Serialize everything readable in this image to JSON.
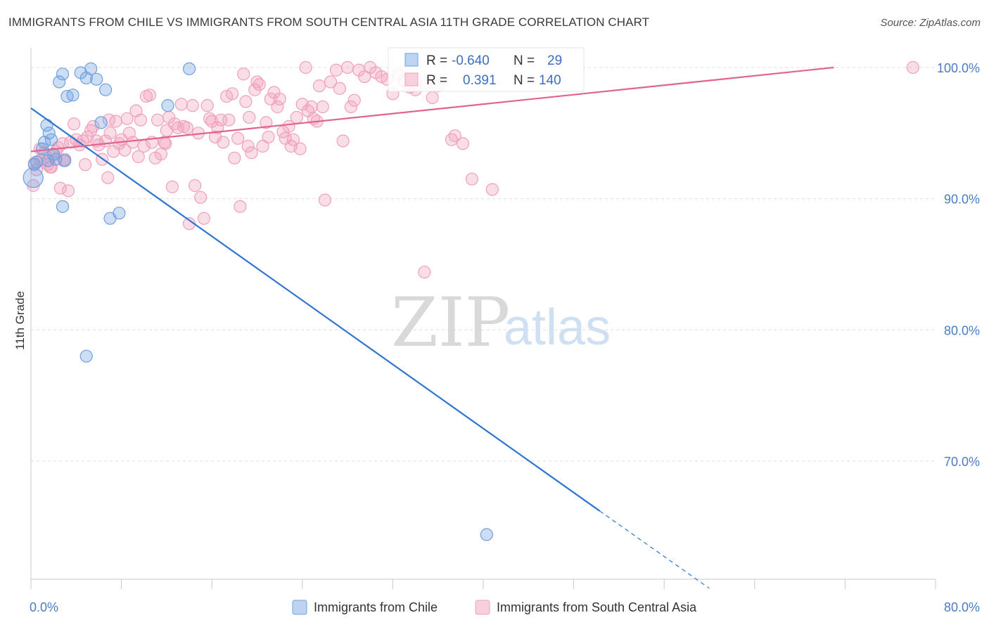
{
  "title": "IMMIGRANTS FROM CHILE VS IMMIGRANTS FROM SOUTH CENTRAL ASIA 11TH GRADE CORRELATION CHART",
  "source": "Source: ZipAtlas.com",
  "watermark": {
    "zip": "ZIP",
    "atlas": "atlas"
  },
  "colors": {
    "chile": "#6fa0e0",
    "chile_line": "#2e74d1",
    "asia": "#f0a0bb",
    "asia_line": "#e0648e",
    "grid": "#dddddd",
    "tick_label": "#4a7cc7"
  },
  "legend": {
    "rows": [
      {
        "r_label": "R =",
        "r_value": "-0.640",
        "n_label": "N =",
        "n_value": "29"
      },
      {
        "r_label": "R =",
        "r_value": "0.391",
        "n_label": "N =",
        "n_value": "140"
      }
    ]
  },
  "chart_data": {
    "type": "scatter",
    "title": "IMMIGRANTS FROM CHILE VS IMMIGRANTS FROM SOUTH CENTRAL ASIA 11TH GRADE CORRELATION CHART",
    "xlabel": "",
    "ylabel": "11th Grade",
    "xlim": [
      0,
      80
    ],
    "ylim": [
      61,
      101.5
    ],
    "x_tick_labels": [
      "0.0%",
      "80.0%"
    ],
    "y_ticks": [
      70,
      80,
      90,
      100
    ],
    "y_tick_labels": [
      "70.0%",
      "80.0%",
      "90.0%",
      "100.0%"
    ],
    "grid": true,
    "legend_position": "top-center",
    "series": [
      {
        "name": "Immigrants from Chile",
        "r": -0.64,
        "n": 29,
        "points": [
          [
            0.2,
            91.6
          ],
          [
            0.3,
            92.6
          ],
          [
            0.5,
            92.8
          ],
          [
            1.0,
            93.8
          ],
          [
            1.2,
            94.3
          ],
          [
            1.4,
            95.6
          ],
          [
            1.6,
            95.0
          ],
          [
            1.8,
            94.5
          ],
          [
            2.0,
            93.4
          ],
          [
            2.2,
            93.0
          ],
          [
            2.5,
            98.9
          ],
          [
            2.8,
            89.4
          ],
          [
            2.8,
            99.5
          ],
          [
            3.0,
            92.9
          ],
          [
            3.2,
            97.8
          ],
          [
            3.7,
            97.9
          ],
          [
            4.4,
            99.6
          ],
          [
            4.9,
            99.2
          ],
          [
            5.3,
            99.9
          ],
          [
            5.8,
            99.1
          ],
          [
            6.2,
            95.8
          ],
          [
            6.6,
            98.3
          ],
          [
            7.0,
            88.5
          ],
          [
            7.8,
            88.9
          ],
          [
            4.9,
            78.0
          ],
          [
            12.1,
            97.1
          ],
          [
            14.0,
            99.9
          ],
          [
            40.3,
            64.4
          ],
          [
            1.5,
            92.9
          ]
        ],
        "trend": {
          "x0": 0,
          "y0": 96.9,
          "x1": 50.3,
          "y1": 66.2,
          "dash_to_x": 60,
          "dash_to_y": 60.3
        }
      },
      {
        "name": "Immigrants from South Central Asia",
        "r": 0.391,
        "n": 140,
        "points": [
          [
            0.2,
            91.0
          ],
          [
            0.3,
            92.7
          ],
          [
            0.5,
            92.2
          ],
          [
            0.8,
            92.9
          ],
          [
            1.0,
            93.0
          ],
          [
            1.2,
            93.5
          ],
          [
            1.5,
            92.6
          ],
          [
            1.8,
            92.4
          ],
          [
            2.0,
            93.3
          ],
          [
            2.2,
            93.6
          ],
          [
            2.4,
            93.9
          ],
          [
            2.6,
            90.8
          ],
          [
            2.8,
            94.2
          ],
          [
            3.0,
            93.0
          ],
          [
            3.3,
            90.6
          ],
          [
            3.5,
            94.3
          ],
          [
            3.8,
            95.7
          ],
          [
            4.0,
            94.5
          ],
          [
            4.3,
            94.1
          ],
          [
            4.6,
            94.4
          ],
          [
            4.8,
            92.6
          ],
          [
            5.0,
            94.7
          ],
          [
            5.3,
            95.2
          ],
          [
            5.5,
            95.5
          ],
          [
            5.8,
            94.4
          ],
          [
            6.0,
            94.1
          ],
          [
            6.3,
            93.0
          ],
          [
            6.6,
            94.4
          ],
          [
            6.8,
            91.6
          ],
          [
            7.0,
            95.0
          ],
          [
            7.3,
            93.6
          ],
          [
            7.5,
            95.9
          ],
          [
            7.8,
            94.2
          ],
          [
            8.0,
            94.5
          ],
          [
            8.3,
            93.7
          ],
          [
            8.5,
            96.1
          ],
          [
            8.7,
            95.0
          ],
          [
            9.0,
            94.3
          ],
          [
            9.3,
            96.7
          ],
          [
            9.5,
            93.2
          ],
          [
            9.7,
            96.0
          ],
          [
            10.0,
            94.0
          ],
          [
            10.2,
            97.8
          ],
          [
            10.5,
            97.9
          ],
          [
            10.7,
            94.3
          ],
          [
            11.0,
            93.1
          ],
          [
            11.2,
            96.0
          ],
          [
            11.5,
            93.4
          ],
          [
            11.8,
            94.3
          ],
          [
            12.0,
            95.2
          ],
          [
            12.2,
            96.2
          ],
          [
            12.5,
            90.9
          ],
          [
            12.7,
            95.7
          ],
          [
            13.0,
            95.4
          ],
          [
            13.3,
            97.2
          ],
          [
            13.5,
            95.5
          ],
          [
            13.8,
            95.4
          ],
          [
            14.0,
            88.1
          ],
          [
            14.3,
            97.1
          ],
          [
            14.5,
            91.0
          ],
          [
            14.8,
            95.0
          ],
          [
            15.0,
            90.1
          ],
          [
            15.3,
            88.5
          ],
          [
            15.6,
            97.1
          ],
          [
            15.8,
            96.1
          ],
          [
            16.0,
            95.9
          ],
          [
            16.3,
            94.7
          ],
          [
            16.5,
            95.4
          ],
          [
            16.8,
            96.0
          ],
          [
            17.0,
            94.3
          ],
          [
            17.3,
            97.8
          ],
          [
            17.5,
            96.0
          ],
          [
            17.8,
            98.0
          ],
          [
            18.0,
            93.1
          ],
          [
            18.3,
            94.6
          ],
          [
            18.5,
            89.4
          ],
          [
            18.8,
            99.5
          ],
          [
            19.0,
            97.4
          ],
          [
            19.3,
            96.2
          ],
          [
            19.5,
            93.5
          ],
          [
            19.8,
            98.3
          ],
          [
            20.0,
            98.9
          ],
          [
            20.2,
            98.7
          ],
          [
            20.5,
            94.0
          ],
          [
            20.8,
            95.8
          ],
          [
            21.0,
            94.7
          ],
          [
            21.2,
            97.6
          ],
          [
            21.5,
            98.1
          ],
          [
            21.8,
            97.0
          ],
          [
            22.0,
            97.6
          ],
          [
            22.3,
            95.1
          ],
          [
            22.5,
            94.6
          ],
          [
            22.8,
            95.5
          ],
          [
            23.0,
            94.0
          ],
          [
            23.2,
            94.5
          ],
          [
            23.5,
            96.2
          ],
          [
            23.8,
            93.8
          ],
          [
            24.0,
            97.2
          ],
          [
            24.3,
            100.0
          ],
          [
            24.5,
            96.7
          ],
          [
            24.8,
            97.0
          ],
          [
            25.0,
            96.1
          ],
          [
            25.3,
            95.9
          ],
          [
            25.5,
            98.6
          ],
          [
            25.8,
            97.0
          ],
          [
            26.0,
            89.9
          ],
          [
            26.5,
            98.9
          ],
          [
            27.0,
            99.8
          ],
          [
            27.3,
            98.4
          ],
          [
            27.6,
            94.4
          ],
          [
            28.0,
            100.0
          ],
          [
            28.3,
            97.0
          ],
          [
            28.6,
            97.5
          ],
          [
            29.0,
            99.8
          ],
          [
            29.5,
            99.3
          ],
          [
            30.0,
            100.0
          ],
          [
            30.5,
            99.6
          ],
          [
            31.0,
            99.3
          ],
          [
            31.5,
            99.1
          ],
          [
            32.0,
            98.0
          ],
          [
            32.5,
            99.5
          ],
          [
            33.0,
            99.0
          ],
          [
            33.5,
            98.5
          ],
          [
            34.0,
            98.3
          ],
          [
            35.0,
            98.8
          ],
          [
            35.5,
            97.7
          ],
          [
            36.0,
            98.6
          ],
          [
            34.8,
            84.4
          ],
          [
            37.2,
            94.5
          ],
          [
            37.5,
            94.8
          ],
          [
            38.2,
            94.2
          ],
          [
            39.0,
            91.5
          ],
          [
            40.8,
            90.7
          ],
          [
            78.0,
            100.0
          ],
          [
            0.8,
            93.8
          ],
          [
            1.7,
            92.4
          ],
          [
            2.9,
            92.9
          ],
          [
            6.9,
            96.0
          ],
          [
            11.9,
            94.2
          ],
          [
            19.2,
            94.0
          ]
        ],
        "trend": {
          "x0": 0,
          "y0": 93.6,
          "x1": 71,
          "y1": 100.0
        }
      }
    ]
  },
  "bottom_legend": [
    {
      "label": "Immigrants from Chile"
    },
    {
      "label": "Immigrants from South Central Asia"
    }
  ]
}
